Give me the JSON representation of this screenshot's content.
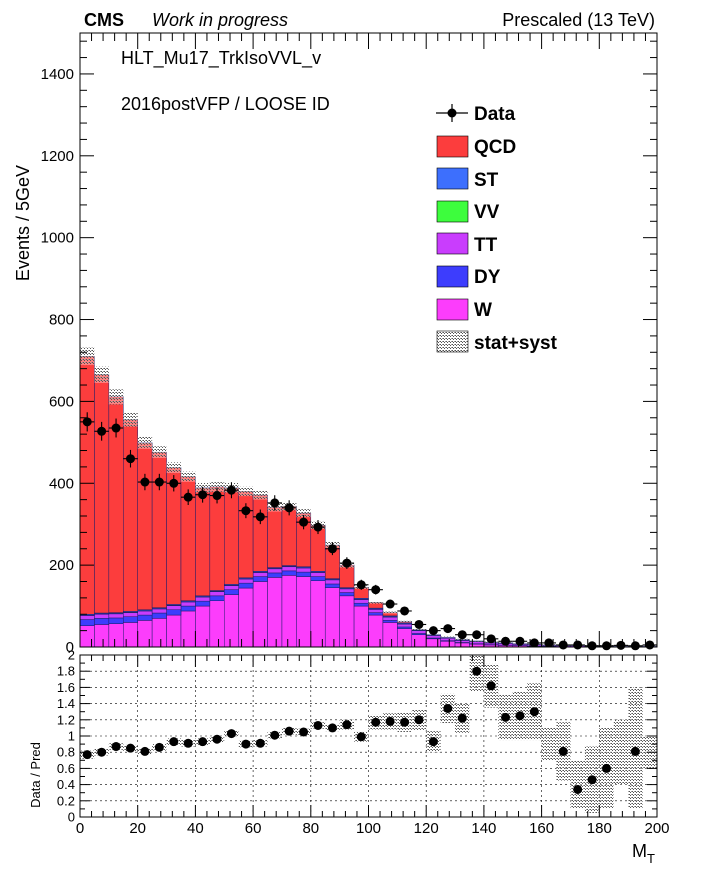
{
  "header": {
    "cms_label": "CMS",
    "cms_sub": "Work in progress",
    "energy_label": "Prescaled (13 TeV)"
  },
  "annotations": {
    "trigger": "HLT_Mu17_TrkIsoVVL_v",
    "selection": "2016postVFP / LOOSE ID"
  },
  "colors": {
    "QCD": "#fc3d3d",
    "ST": "#3d6ffd",
    "VV": "#3dfd3d",
    "TT": "#c93dfd",
    "DY": "#3d3dfd",
    "W": "#fc3dfc",
    "uncertainty": "#888888",
    "data": "#000000"
  },
  "chart_data": [
    {
      "type": "bar",
      "stacked": true,
      "xlabel": "M",
      "xlabel_subscript": "T",
      "ylabel": "Events / 5GeV",
      "xlim": [
        0,
        200
      ],
      "ylim": [
        0,
        1500
      ],
      "yticks": [
        "0",
        "200",
        "400",
        "600",
        "800",
        "1000",
        "1200",
        "1400"
      ],
      "xticks": [
        "0",
        "20",
        "40",
        "60",
        "80",
        "100",
        "120",
        "140",
        "160",
        "180",
        "200"
      ],
      "bin_width": 5,
      "bin_low_edges": [
        0,
        5,
        10,
        15,
        20,
        25,
        30,
        35,
        40,
        45,
        50,
        55,
        60,
        65,
        70,
        75,
        80,
        85,
        90,
        95,
        100,
        105,
        110,
        115,
        120,
        125,
        130,
        135,
        140,
        145,
        150,
        155,
        160,
        165,
        170,
        175,
        180,
        185,
        190,
        195
      ],
      "legend": {
        "position": "top-right",
        "entries": [
          "Data",
          "QCD",
          "ST",
          "VV",
          "TT",
          "DY",
          "W",
          "stat+syst"
        ]
      },
      "series": [
        {
          "name": "W",
          "values": [
            52,
            55,
            57,
            60,
            65,
            70,
            78,
            88,
            100,
            113,
            128,
            144,
            160,
            170,
            175,
            172,
            162,
            145,
            125,
            100,
            78,
            60,
            45,
            30,
            20,
            14,
            10,
            7,
            5,
            4,
            3,
            2,
            1.5,
            1,
            0.8,
            0.5,
            0.4,
            0.3,
            0.2,
            0.2
          ]
        },
        {
          "name": "DY",
          "values": [
            15,
            15,
            14,
            14,
            13,
            13,
            13,
            12,
            12,
            12,
            12,
            12,
            12,
            11,
            11,
            11,
            10,
            9,
            8,
            7,
            6,
            5,
            4,
            3,
            2,
            1.5,
            1,
            1,
            0.8,
            0.6,
            0.5,
            0.4,
            0.3,
            0.2,
            0.2,
            0.1,
            0.1,
            0.1,
            0.1,
            0.1
          ]
        },
        {
          "name": "TT",
          "values": [
            10,
            10,
            10,
            10,
            10,
            10,
            10,
            10,
            10,
            10,
            10,
            10,
            10,
            10,
            10,
            10,
            10,
            10,
            9,
            9,
            8,
            8,
            7,
            7,
            6,
            6,
            5,
            5,
            4,
            4,
            3,
            3,
            2,
            2,
            2,
            1.5,
            1.5,
            1,
            1,
            1
          ]
        },
        {
          "name": "VV",
          "values": [
            1,
            1,
            1,
            1,
            1,
            1,
            1,
            1,
            1,
            1,
            1,
            1,
            1,
            1,
            1,
            1,
            1,
            1,
            1,
            1,
            1,
            1,
            1,
            1,
            1,
            1,
            1,
            1,
            1,
            1,
            1,
            1,
            0.5,
            0.5,
            0.5,
            0.5,
            0.5,
            0.5,
            0.5,
            0.5
          ]
        },
        {
          "name": "ST",
          "values": [
            2,
            2,
            2,
            2,
            2,
            2,
            2,
            2,
            2,
            2,
            2,
            2,
            2,
            2,
            2,
            2,
            2,
            2,
            2,
            2,
            2,
            2,
            2,
            2,
            1.5,
            1.5,
            1.5,
            1,
            1,
            1,
            1,
            1,
            1,
            0.5,
            0.5,
            0.5,
            0.5,
            0.5,
            0.5,
            0.5
          ]
        },
        {
          "name": "QCD",
          "values": [
            630,
            582,
            527,
            468,
            408,
            380,
            334,
            303,
            264,
            253,
            236,
            211,
            186,
            147,
            145,
            131,
            112,
            82,
            55,
            27,
            14,
            8,
            3,
            0,
            0,
            0,
            0,
            0,
            0,
            0,
            0,
            0,
            0,
            0,
            0,
            0,
            0,
            0,
            0,
            0
          ]
        }
      ],
      "data_points": [
        550,
        527,
        535,
        460,
        403,
        403,
        400,
        366,
        372,
        370,
        383,
        333,
        318,
        352,
        340,
        305,
        293,
        240,
        205,
        152,
        140,
        105,
        88,
        55,
        40,
        45,
        30,
        30,
        20,
        14,
        14,
        10,
        10,
        5,
        5,
        3,
        3,
        4,
        3,
        5
      ],
      "unc_fraction": 0.03
    },
    {
      "type": "scatter",
      "ylabel": "Data / Pred",
      "xlim": [
        0,
        200
      ],
      "ylim": [
        0,
        2
      ],
      "yticks": [
        "0",
        "0.2",
        "0.4",
        "0.6",
        "0.8",
        "1",
        "1.2",
        "1.4",
        "1.6",
        "1.8",
        "2"
      ],
      "xticks": [
        "0",
        "20",
        "40",
        "60",
        "80",
        "100",
        "120",
        "140",
        "160",
        "180",
        "200"
      ],
      "x": [
        2.5,
        7.5,
        12.5,
        17.5,
        22.5,
        27.5,
        32.5,
        37.5,
        42.5,
        47.5,
        52.5,
        57.5,
        62.5,
        67.5,
        72.5,
        77.5,
        82.5,
        87.5,
        92.5,
        97.5,
        102.5,
        107.5,
        112.5,
        117.5,
        122.5,
        127.5,
        132.5,
        137.5,
        142.5,
        147.5,
        152.5,
        157.5,
        162.5,
        167.5,
        172.5,
        177.5,
        182.5,
        187.5,
        192.5,
        197.5
      ],
      "ratio": [
        0.77,
        0.8,
        0.87,
        0.85,
        0.81,
        0.86,
        0.93,
        0.91,
        0.93,
        0.96,
        1.03,
        0.9,
        0.91,
        1.01,
        1.06,
        1.05,
        1.13,
        1.1,
        1.14,
        0.99,
        1.17,
        1.18,
        1.17,
        1.2,
        0.93,
        1.34,
        1.22,
        1.8,
        1.62,
        1.23,
        1.25,
        1.3,
        null,
        0.81,
        0.34,
        0.46,
        0.6,
        null,
        0.81,
        null
      ],
      "unc_band": [
        [
          0.72,
          0.82
        ],
        [
          0.76,
          0.84
        ],
        [
          0.83,
          0.91
        ],
        [
          0.81,
          0.89
        ],
        [
          0.77,
          0.85
        ],
        [
          0.82,
          0.9
        ],
        [
          0.89,
          0.97
        ],
        [
          0.87,
          0.95
        ],
        [
          0.89,
          0.97
        ],
        [
          0.92,
          1.0
        ],
        [
          0.99,
          1.07
        ],
        [
          0.86,
          0.94
        ],
        [
          0.87,
          0.95
        ],
        [
          0.97,
          1.05
        ],
        [
          1.02,
          1.1
        ],
        [
          1.01,
          1.09
        ],
        [
          1.09,
          1.17
        ],
        [
          1.06,
          1.14
        ],
        [
          1.08,
          1.2
        ],
        [
          0.93,
          1.05
        ],
        [
          1.08,
          1.26
        ],
        [
          1.08,
          1.28
        ],
        [
          1.05,
          1.29
        ],
        [
          1.07,
          1.33
        ],
        [
          0.8,
          1.06
        ],
        [
          1.16,
          1.52
        ],
        [
          1.04,
          1.4
        ],
        [
          1.55,
          2.0
        ],
        [
          1.35,
          1.89
        ],
        [
          0.95,
          1.51
        ],
        [
          0.95,
          1.55
        ],
        [
          0.95,
          1.65
        ],
        [
          0.7,
          1.1
        ],
        [
          0.45,
          1.17
        ],
        [
          0.1,
          0.7
        ],
        [
          0.05,
          0.87
        ],
        [
          0.1,
          1.1
        ],
        [
          0.4,
          1.2
        ],
        [
          0.1,
          1.6
        ],
        [
          0.6,
          1.0
        ]
      ]
    }
  ]
}
